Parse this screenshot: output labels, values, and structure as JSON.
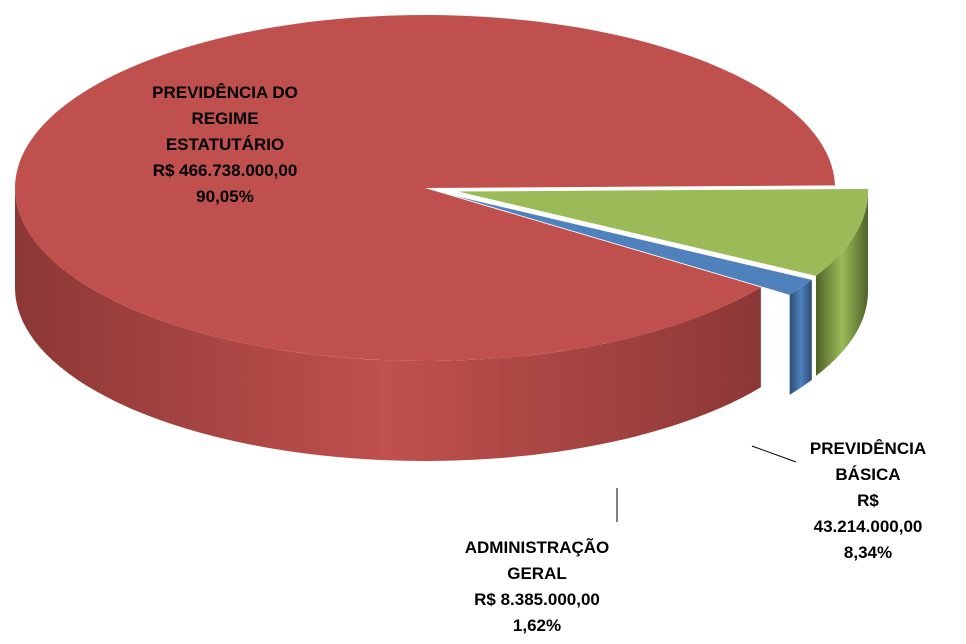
{
  "chart_data": {
    "type": "pie",
    "categories": [
      "PREVIDÊNCIA DO\nREGIME\nESTATUTÁRIO",
      "PREVIDÊNCIA\nBÁSICA",
      "ADMINISTRAÇÃO\nGERAL"
    ],
    "values": [
      90.05,
      8.34,
      1.62
    ],
    "value_labels": [
      "90,05%",
      "8,34%",
      "1,62%"
    ],
    "amounts": [
      466738000,
      43214000,
      8385000
    ],
    "amount_labels": [
      "R$ 466.738.000,00",
      "R$ 43.214.000,00",
      "R$ 8.385.000,00"
    ],
    "colors": [
      "#c0504d",
      "#9bbb59",
      "#4f81bd"
    ],
    "side_colors": [
      "#8c3836",
      "#4f6228",
      "#2c4d75"
    ]
  }
}
